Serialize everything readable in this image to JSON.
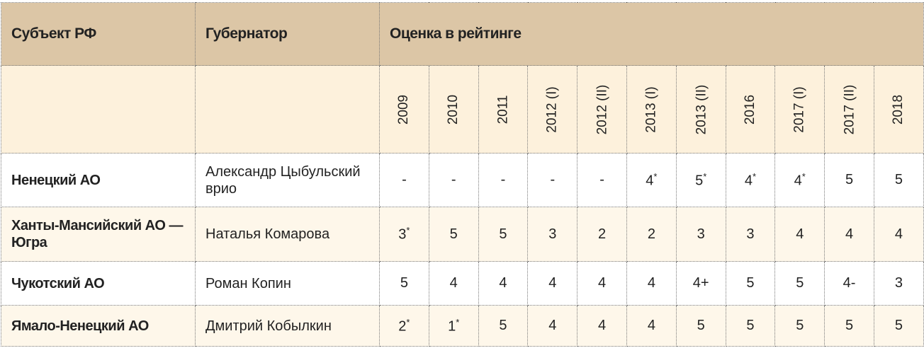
{
  "header": {
    "subject": "Субъект РФ",
    "governor": "Губернатор",
    "rating": "Оценка в рейтинге"
  },
  "years": [
    "2009",
    "2010",
    "2011",
    "2012 (I)",
    "2012 (II)",
    "2013 (I)",
    "2013 (II)",
    "2016",
    "2017 (I)",
    "2017 (II)",
    "2018"
  ],
  "rows": [
    {
      "subject": "Ненецкий АО",
      "governor": "Александр Цыбульский врио",
      "values": [
        "-",
        "-",
        "-",
        "-",
        "-",
        "4*",
        "5*",
        "4*",
        "4*",
        "5",
        "5"
      ]
    },
    {
      "subject": "Ханты-Мансийский АО — Югра",
      "governor": "Наталья Комарова",
      "values": [
        "3*",
        "5",
        "5",
        "3",
        "2",
        "2",
        "3",
        "3",
        "4",
        "4",
        "4"
      ]
    },
    {
      "subject": "Чукотский АО",
      "governor": "Роман Копин",
      "values": [
        "5",
        "4",
        "4",
        "4",
        "4",
        "4",
        "4+",
        "5",
        "5",
        "4-",
        "3"
      ]
    },
    {
      "subject": "Ямало-Ненецкий АО",
      "governor": "Дмитрий Кобылкин",
      "values": [
        "2*",
        "1*",
        "5",
        "4",
        "4",
        "4",
        "5",
        "5",
        "5",
        "5",
        "5"
      ]
    }
  ],
  "colors": {
    "header_bg": "#dcc6a6",
    "year_row_bg": "#fdf1dc",
    "alt_row_bg": "#fef7ea"
  }
}
